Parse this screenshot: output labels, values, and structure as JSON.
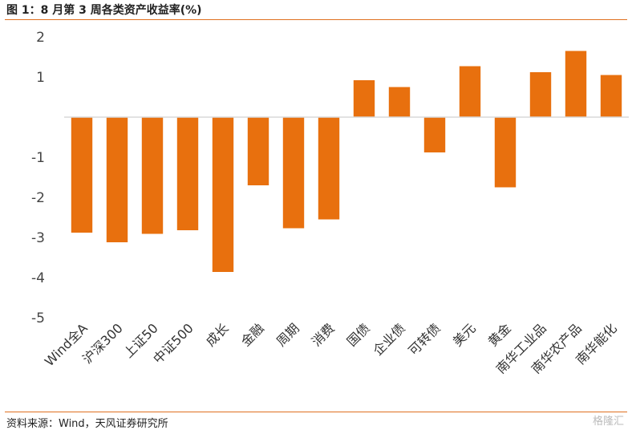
{
  "title": "图 1：8 月第 3 周各类资产收益率(%)",
  "source": "资料来源：Wind，天风证券研究所",
  "watermark": "格隆汇",
  "colors": {
    "bar": "#e8700e",
    "rule": "#e07020",
    "zero_line": "#d9d9d9"
  },
  "chart_data": {
    "type": "bar",
    "title": "图 1：8 月第 3 周各类资产收益率(%)",
    "xlabel": "",
    "ylabel": "",
    "ylim": [
      -5,
      2
    ],
    "yticks": [
      2,
      1,
      -1,
      -2,
      -3,
      -4,
      -5
    ],
    "ytick_labels": [
      "2",
      "1",
      "-1",
      "-2",
      "-3",
      "-4",
      "-5"
    ],
    "grid": false,
    "legend": "none",
    "categories": [
      "Wind全A",
      "沪深300",
      "上证50",
      "中证500",
      "成长",
      "金融",
      "周期",
      "消费",
      "国债",
      "企业债",
      "可转债",
      "美元",
      "黄金",
      "南华工业品",
      "南华农产品",
      "南华能化"
    ],
    "values": [
      -2.88,
      -3.12,
      -2.91,
      -2.82,
      -3.86,
      -1.7,
      -2.77,
      -2.55,
      0.92,
      0.75,
      -0.88,
      1.27,
      -1.75,
      1.12,
      1.65,
      1.05
    ]
  }
}
